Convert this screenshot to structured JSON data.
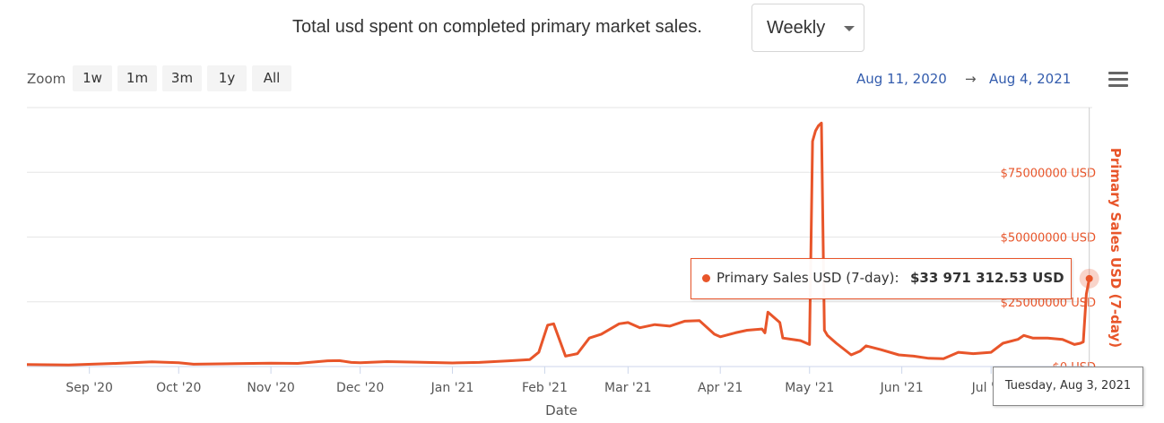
{
  "header": {
    "title": "Total usd spent on completed primary market sales.",
    "period_select": "Weekly"
  },
  "toolbar": {
    "zoom_label": "Zoom",
    "zoom_buttons": [
      "1w",
      "1m",
      "3m",
      "1y",
      "All"
    ],
    "range_from": "Aug 11, 2020",
    "range_arrow": "→",
    "range_to": "Aug 4, 2021",
    "menu_icon": "hamburger-menu-icon"
  },
  "tooltip": {
    "series_label": "Primary Sales USD (7-day): ",
    "value_label": "$33 971 312.53 USD",
    "date_label": "Tuesday, Aug 3, 2021"
  },
  "chart_data": {
    "type": "line",
    "xlabel": "Date",
    "ylabel": "Primary Sales USD (7-day)",
    "x_tick_labels": [
      "Sep '20",
      "Oct '20",
      "Nov '20",
      "Dec '20",
      "Jan '21",
      "Feb '21",
      "Mar '21",
      "Apr '21",
      "May '21",
      "Jun '21",
      "Jul '21"
    ],
    "y_ticks": [
      0,
      25000000,
      50000000,
      75000000
    ],
    "y_tick_labels": [
      "$0 USD",
      "$25000000 USD",
      "$50000000 USD",
      "$75000000 USD"
    ],
    "ylim": [
      0,
      100000000
    ],
    "xlim": [
      "2020-08-11",
      "2021-08-04"
    ],
    "grid": true,
    "colors": {
      "series": "#e8552a",
      "grid": "#e6e6e6",
      "axis_title": "#e8552a"
    },
    "series": [
      {
        "name": "Primary Sales USD (7-day)",
        "x": [
          "2020-08-11",
          "2020-08-25",
          "2020-09-10",
          "2020-09-22",
          "2020-10-01",
          "2020-10-06",
          "2020-10-12",
          "2020-10-20",
          "2020-11-01",
          "2020-11-10",
          "2020-11-20",
          "2020-11-24",
          "2020-11-28",
          "2020-12-01",
          "2020-12-10",
          "2020-12-20",
          "2021-01-01",
          "2021-01-10",
          "2021-01-20",
          "2021-01-27",
          "2021-01-30",
          "2021-02-02",
          "2021-02-04",
          "2021-02-08",
          "2021-02-12",
          "2021-02-16",
          "2021-02-20",
          "2021-02-26",
          "2021-03-01",
          "2021-03-05",
          "2021-03-10",
          "2021-03-15",
          "2021-03-20",
          "2021-03-25",
          "2021-03-30",
          "2021-04-01",
          "2021-04-06",
          "2021-04-10",
          "2021-04-15",
          "2021-04-16",
          "2021-04-17",
          "2021-04-21",
          "2021-04-22",
          "2021-04-28",
          "2021-05-01",
          "2021-05-02",
          "2021-05-03",
          "2021-05-04",
          "2021-05-05",
          "2021-05-06",
          "2021-05-07",
          "2021-05-09",
          "2021-05-10",
          "2021-05-15",
          "2021-05-18",
          "2021-05-20",
          "2021-05-25",
          "2021-05-31",
          "2021-06-05",
          "2021-06-10",
          "2021-06-15",
          "2021-06-20",
          "2021-06-25",
          "2021-07-01",
          "2021-07-05",
          "2021-07-10",
          "2021-07-12",
          "2021-07-15",
          "2021-07-20",
          "2021-07-25",
          "2021-07-29",
          "2021-07-31",
          "2021-08-01",
          "2021-08-02",
          "2021-08-03"
        ],
        "values": [
          800000,
          600000,
          1200000,
          1800000,
          1500000,
          900000,
          1000000,
          1100000,
          1300000,
          1200000,
          2200000,
          2300000,
          1600000,
          1500000,
          1900000,
          1700000,
          1400000,
          1600000,
          2200000,
          2700000,
          5500000,
          16000000,
          16500000,
          4000000,
          5000000,
          11000000,
          12500000,
          16500000,
          17000000,
          15000000,
          16200000,
          15600000,
          17500000,
          17700000,
          12500000,
          11500000,
          13000000,
          14000000,
          14500000,
          13000000,
          21000000,
          17000000,
          11000000,
          10000000,
          8500000,
          87000000,
          91000000,
          93000000,
          94000000,
          14000000,
          12000000,
          10000000,
          9000000,
          4500000,
          6000000,
          8000000,
          6500000,
          4500000,
          4000000,
          3200000,
          3000000,
          5500000,
          5000000,
          5500000,
          9000000,
          10500000,
          12000000,
          11000000,
          11000000,
          10500000,
          8500000,
          9000000,
          9500000,
          28000000,
          33971312.53
        ]
      }
    ]
  }
}
